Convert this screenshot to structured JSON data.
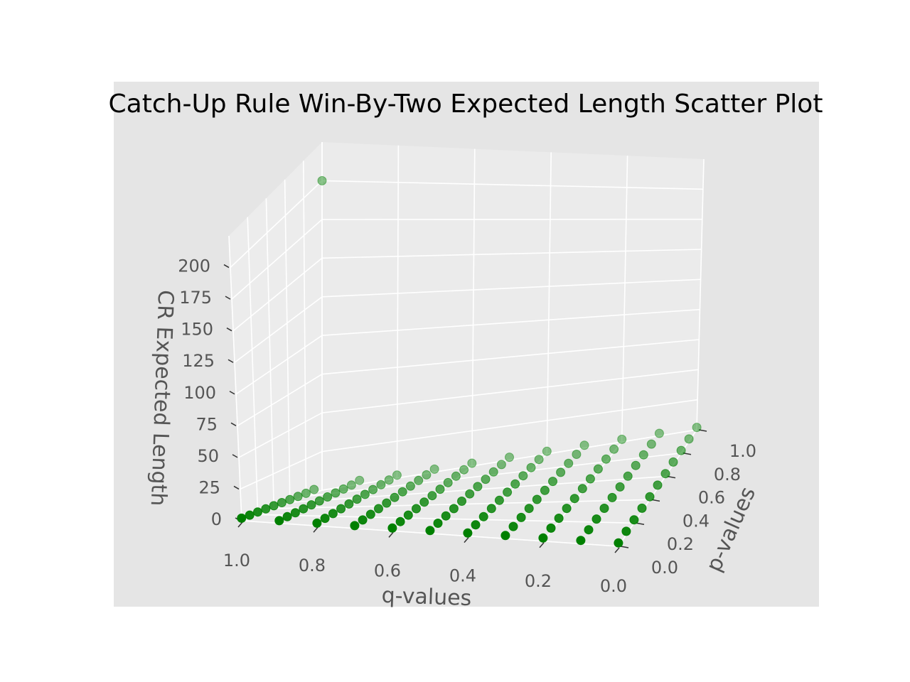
{
  "chart_data": {
    "type": "scatter",
    "projection": "3d",
    "title": "Catch-Up Rule Win-By-Two Expected Length Scatter Plot",
    "xlabel": "q-values",
    "ylabel": "p-values",
    "zlabel": "CR Expected Length",
    "x_ticks": [
      "1.0",
      "0.8",
      "0.6",
      "0.4",
      "0.2",
      "0.0"
    ],
    "y_ticks": [
      "0.0",
      "0.2",
      "0.4",
      "0.6",
      "0.8",
      "1.0"
    ],
    "z_ticks": [
      "0",
      "25",
      "50",
      "75",
      "100",
      "125",
      "150",
      "175",
      "200"
    ],
    "xlim": [
      0,
      1
    ],
    "ylim": [
      0,
      1
    ],
    "zlim": [
      0,
      225
    ],
    "grid": true,
    "marker_color": "#008000",
    "panel_color": "#ebebeb",
    "figure_bg_color": "#e5e5e5",
    "q_values": [
      0.0,
      0.1,
      0.2,
      0.3,
      0.4,
      0.5,
      0.6,
      0.7,
      0.8,
      0.9,
      1.0
    ],
    "p_values": [
      0.0,
      0.1,
      0.2,
      0.3,
      0.4,
      0.5,
      0.6,
      0.7,
      0.8,
      0.9,
      1.0
    ],
    "z_default": 2,
    "z_overrides": [
      {
        "q": 1.0,
        "p": 1.0,
        "z": 200
      },
      {
        "q": 1.0,
        "p": 0.9,
        "z": 2.5
      },
      {
        "q": 0.9,
        "p": 1.0,
        "z": 2.5
      }
    ]
  }
}
